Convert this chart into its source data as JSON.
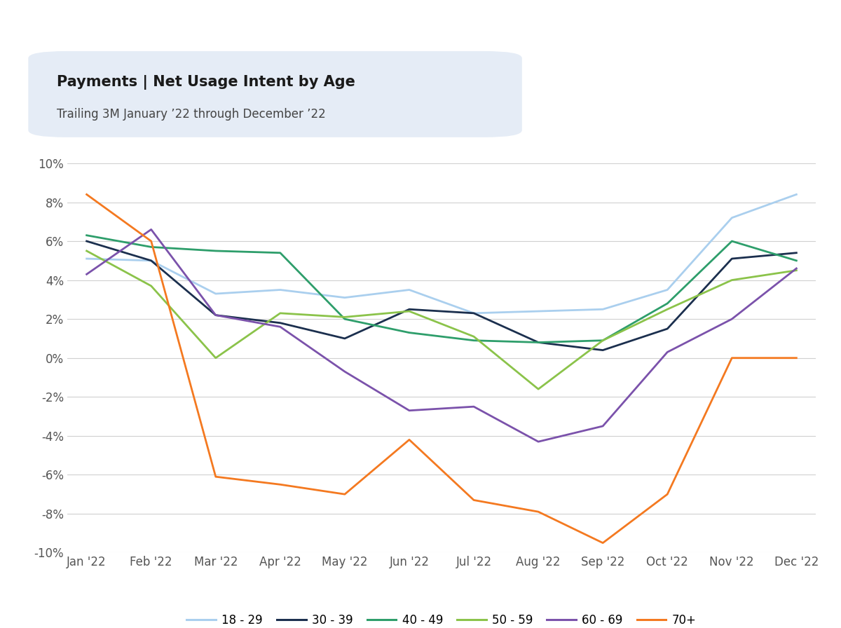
{
  "title": "Payments | Net Usage Intent by Age",
  "subtitle": "Trailing 3M January ’22 through December ’22",
  "x_labels": [
    "Jan '22",
    "Feb '22",
    "Mar '22",
    "Apr '22",
    "May '22",
    "Jun '22",
    "Jul '22",
    "Aug '22",
    "Sep '22",
    "Oct '22",
    "Nov '22",
    "Dec '22"
  ],
  "series": [
    {
      "label": "18 - 29",
      "color": "#aacfee",
      "linewidth": 2.0,
      "data": [
        5.1,
        5.0,
        3.3,
        3.5,
        3.1,
        3.5,
        2.3,
        2.4,
        2.5,
        3.5,
        7.2,
        8.4
      ]
    },
    {
      "label": "30 - 39",
      "color": "#1b2f4e",
      "linewidth": 2.0,
      "data": [
        6.0,
        5.0,
        2.2,
        1.8,
        1.0,
        2.5,
        2.3,
        0.8,
        0.4,
        1.5,
        5.1,
        5.4
      ]
    },
    {
      "label": "40 - 49",
      "color": "#2e9e6b",
      "linewidth": 2.0,
      "data": [
        6.3,
        5.7,
        5.5,
        5.4,
        2.0,
        1.3,
        0.9,
        0.8,
        0.9,
        2.8,
        6.0,
        5.0
      ]
    },
    {
      "label": "50 - 59",
      "color": "#8bc34a",
      "linewidth": 2.0,
      "data": [
        5.5,
        3.7,
        0.0,
        2.3,
        2.1,
        2.4,
        1.1,
        -1.6,
        0.9,
        2.5,
        4.0,
        4.5
      ]
    },
    {
      "label": "60 - 69",
      "color": "#7b52ab",
      "linewidth": 2.0,
      "data": [
        4.3,
        6.6,
        2.2,
        1.6,
        -0.7,
        -2.7,
        -2.5,
        -4.3,
        -3.5,
        0.3,
        2.0,
        4.6
      ]
    },
    {
      "label": "70+",
      "color": "#f47920",
      "linewidth": 2.0,
      "data": [
        8.4,
        6.0,
        -6.1,
        -6.5,
        -7.0,
        -4.2,
        -7.3,
        -7.9,
        -9.5,
        -7.0,
        0.0,
        0.0
      ]
    }
  ],
  "ylim": [
    -10,
    10
  ],
  "yticks": [
    -10,
    -8,
    -6,
    -4,
    -2,
    0,
    2,
    4,
    6,
    8,
    10
  ],
  "background_color": "#ffffff",
  "grid_color": "#d0d0d0",
  "title_fontsize": 15,
  "subtitle_fontsize": 12,
  "tick_fontsize": 12,
  "legend_fontsize": 12,
  "title_box_color": "#e5ecf6"
}
